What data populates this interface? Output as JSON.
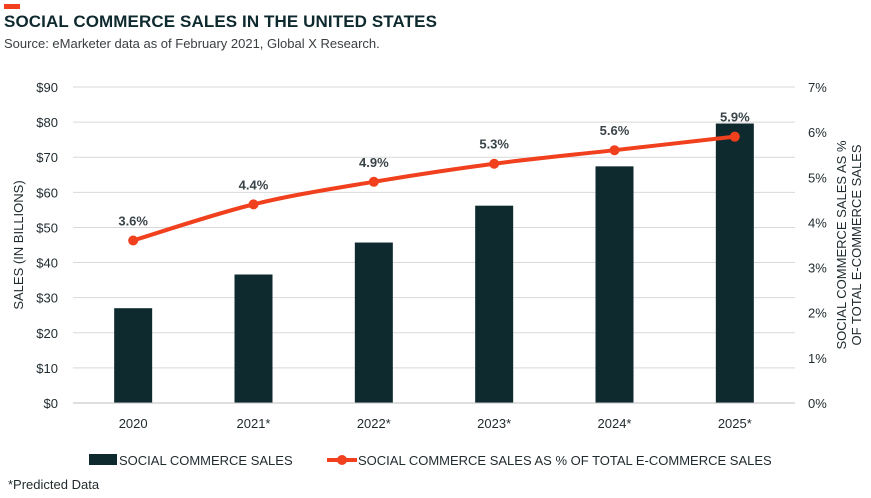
{
  "header": {
    "title": "SOCIAL COMMERCE SALES IN THE UNITED STATES",
    "subtitle": "Source: eMarketer data as of February 2021, Global X Research."
  },
  "footnote": "*Predicted Data",
  "colors": {
    "accent": "#f0401e",
    "bar": "#0e2a2f",
    "line": "#f0401e",
    "grid": "#d9d9d9",
    "text": "#1f2a2e"
  },
  "chart_data": {
    "type": "bar",
    "categories": [
      "2020",
      "2021*",
      "2022*",
      "2023*",
      "2024*",
      "2025*"
    ],
    "series": [
      {
        "name": "SOCIAL COMMERCE SALES",
        "type": "bar",
        "axis": "left",
        "values": [
          27,
          36.6,
          45.7,
          56.2,
          67.4,
          79.6
        ]
      },
      {
        "name": "SOCIAL COMMERCE SALES AS % OF TOTAL E-COMMERCE SALES",
        "type": "line",
        "axis": "right",
        "values": [
          3.6,
          4.4,
          4.9,
          5.3,
          5.6,
          5.9
        ],
        "labels": [
          "3.6%",
          "4.4%",
          "4.9%",
          "5.3%",
          "5.6%",
          "5.9%"
        ]
      }
    ],
    "ylabel": "SALES (IN BILLIONS)",
    "ylim": [
      0,
      90
    ],
    "yticks": [
      "$0",
      "$10",
      "$20",
      "$30",
      "$40",
      "$50",
      "$60",
      "$70",
      "$80",
      "$90"
    ],
    "y2label_lines": [
      "SOCIAL COMMERCE SALES AS %",
      "OF TOTAL E-COMMERCE SALES"
    ],
    "y2lim": [
      0,
      7
    ],
    "y2ticks": [
      "0%",
      "1%",
      "2%",
      "3%",
      "4%",
      "5%",
      "6%",
      "7%"
    ],
    "grid": "horizontal",
    "legend_position": "bottom"
  }
}
